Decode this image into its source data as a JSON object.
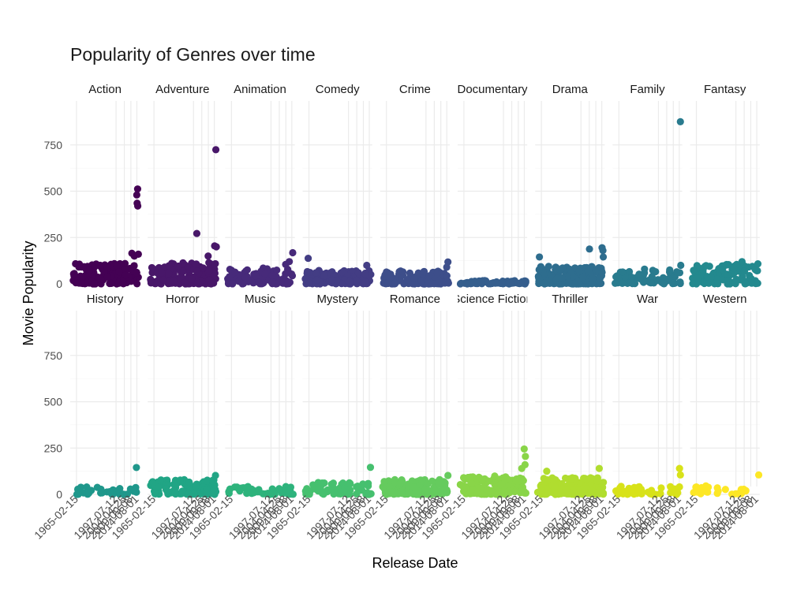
{
  "chart_data": {
    "type": "scatter",
    "title": "Popularity of Genres over time",
    "xlabel": "Release Date",
    "ylabel": "Movie Popularity",
    "facets": [
      "Action",
      "Adventure",
      "Animation",
      "Comedy",
      "Crime",
      "Documentary",
      "Drama",
      "Family",
      "Fantasy",
      "History",
      "Horror",
      "Music",
      "Mystery",
      "Romance",
      "Science Fiction",
      "Thriller",
      "War",
      "Western"
    ],
    "facet_layout": {
      "rows": 2,
      "cols": 9
    },
    "x_ticks": [
      "1965-02-15",
      "1997-07-12",
      "2004-04-25",
      "2009-09-08",
      "2014-08-01"
    ],
    "x_tick_years": [
      1965.12,
      1997.53,
      2004.32,
      2009.69,
      2014.58
    ],
    "xlim": [
      1960,
      2017
    ],
    "y_ticks": [
      0,
      250,
      500,
      750
    ],
    "ylim": [
      -40,
      900
    ],
    "grid": true,
    "legend": "none",
    "colors": {
      "Action": "#440154",
      "Adventure": "#481769",
      "Animation": "#472a7a",
      "Comedy": "#433d84",
      "Crime": "#3d4e8a",
      "Documentary": "#355e8d",
      "Drama": "#2e6d8e",
      "Family": "#297b8e",
      "Fantasy": "#23898e",
      "History": "#1f978b",
      "Horror": "#21a585",
      "Music": "#2eb37c",
      "Mystery": "#46c06f",
      "Romance": "#65cb5e",
      "Science Fiction": "#89d548",
      "Thriller": "#b0dd2f",
      "War": "#d8e219",
      "Western": "#fde725"
    },
    "point_profiles": {
      "Action": {
        "n": 160,
        "x_range": [
          1962,
          2016
        ],
        "y_range": [
          0,
          110
        ]
      },
      "Adventure": {
        "n": 150,
        "x_range": [
          1962,
          2016
        ],
        "y_range": [
          0,
          115
        ]
      },
      "Animation": {
        "n": 95,
        "x_range": [
          1962,
          2016
        ],
        "y_range": [
          0,
          90
        ]
      },
      "Comedy": {
        "n": 160,
        "x_range": [
          1962,
          2016
        ],
        "y_range": [
          0,
          75
        ]
      },
      "Crime": {
        "n": 130,
        "x_range": [
          1962,
          2016
        ],
        "y_range": [
          0,
          70
        ]
      },
      "Documentary": {
        "n": 70,
        "x_range": [
          1962,
          2016
        ],
        "y_range": [
          0,
          20
        ]
      },
      "Drama": {
        "n": 180,
        "x_range": [
          1962,
          2016
        ],
        "y_range": [
          0,
          95
        ]
      },
      "Family": {
        "n": 75,
        "x_range": [
          1962,
          2016
        ],
        "y_range": [
          0,
          80
        ]
      },
      "Fantasy": {
        "n": 110,
        "x_range": [
          1962,
          2016
        ],
        "y_range": [
          0,
          105
        ]
      },
      "History": {
        "n": 30,
        "x_range": [
          1962,
          2016
        ],
        "y_range": [
          0,
          40
        ]
      },
      "Horror": {
        "n": 140,
        "x_range": [
          1962,
          2016
        ],
        "y_range": [
          0,
          80
        ]
      },
      "Music": {
        "n": 50,
        "x_range": [
          1962,
          2016
        ],
        "y_range": [
          0,
          45
        ]
      },
      "Mystery": {
        "n": 75,
        "x_range": [
          1962,
          2016
        ],
        "y_range": [
          0,
          65
        ]
      },
      "Romance": {
        "n": 120,
        "x_range": [
          1962,
          2016
        ],
        "y_range": [
          0,
          80
        ]
      },
      "Science Fiction": {
        "n": 130,
        "x_range": [
          1962,
          2016
        ],
        "y_range": [
          0,
          100
        ]
      },
      "Thriller": {
        "n": 170,
        "x_range": [
          1962,
          2016
        ],
        "y_range": [
          0,
          90
        ]
      },
      "War": {
        "n": 45,
        "x_range": [
          1962,
          2016
        ],
        "y_range": [
          0,
          45
        ]
      },
      "Western": {
        "n": 25,
        "x_range": [
          1962,
          2016
        ],
        "y_range": [
          0,
          50
        ]
      }
    },
    "notable_points": {
      "Action": [
        [
          2014.5,
          480
        ],
        [
          2015.2,
          512
        ],
        [
          2014.8,
          435
        ],
        [
          2015.3,
          420
        ],
        [
          2010.5,
          165
        ],
        [
          2012.5,
          150
        ],
        [
          2015.8,
          160
        ]
      ],
      "Adventure": [
        [
          2015.8,
          724
        ],
        [
          2014.8,
          205
        ],
        [
          2016.2,
          200
        ],
        [
          2000.2,
          272
        ],
        [
          2009.5,
          150
        ]
      ],
      "Animation": [
        [
          2015.3,
          168
        ],
        [
          2012.5,
          120
        ],
        [
          2009.5,
          105
        ]
      ],
      "Comedy": [
        [
          1964.5,
          138
        ],
        [
          2012.5,
          100
        ]
      ],
      "Crime": [
        [
          2015.5,
          118
        ],
        [
          2014.5,
          90
        ]
      ],
      "Drama": [
        [
          2014.8,
          195
        ],
        [
          2015.5,
          180
        ],
        [
          2004.5,
          188
        ],
        [
          2015.8,
          145
        ],
        [
          1963.5,
          145
        ]
      ],
      "Family": [
        [
          2015.5,
          875
        ],
        [
          2015.8,
          100
        ],
        [
          2012.5,
          65
        ]
      ],
      "Fantasy": [
        [
          2015.5,
          108
        ],
        [
          2002.5,
          120
        ]
      ],
      "History": [
        [
          2014.2,
          145
        ],
        [
          1973.5,
          40
        ]
      ],
      "Horror": [
        [
          2015.5,
          102
        ]
      ],
      "Mystery": [
        [
          2015.5,
          146
        ]
      ],
      "Romance": [
        [
          2015.5,
          102
        ]
      ],
      "Science Fiction": [
        [
          2014.5,
          245
        ],
        [
          2015.5,
          205
        ],
        [
          2015.2,
          160
        ],
        [
          2012.5,
          140
        ]
      ],
      "Thriller": [
        [
          2012.5,
          140
        ],
        [
          1969.5,
          125
        ]
      ],
      "War": [
        [
          2014.8,
          140
        ],
        [
          2015.5,
          105
        ]
      ],
      "Western": [
        [
          2016.2,
          105
        ]
      ]
    }
  }
}
